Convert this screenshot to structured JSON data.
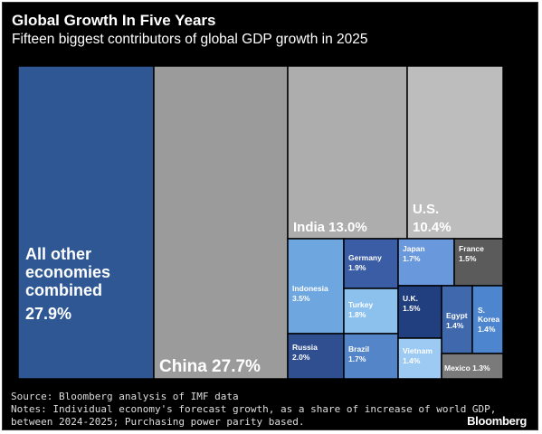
{
  "chart_data": {
    "type": "treemap",
    "title": "Global Growth In Five Years",
    "subtitle": "Fifteen biggest contributors of global GDP growth in 2025",
    "unit": "%",
    "items": [
      {
        "label": "All other economies combined",
        "value": 27.9,
        "display": "27.9%",
        "color": "#2e5794"
      },
      {
        "label": "China",
        "value": 27.7,
        "display": "27.7%",
        "color": "#9b9b9b"
      },
      {
        "label": "India",
        "value": 13.0,
        "display": "13.0%",
        "color": "#adadad"
      },
      {
        "label": "U.S.",
        "value": 10.4,
        "display": "10.4%",
        "color": "#bdbdbd"
      },
      {
        "label": "Indonesia",
        "value": 3.5,
        "display": "3.5%",
        "color": "#6ea6df"
      },
      {
        "label": "Germany",
        "value": 1.9,
        "display": "1.9%",
        "color": "#3a5da6"
      },
      {
        "label": "Turkey",
        "value": 1.8,
        "display": "1.8%",
        "color": "#8cc1ee"
      },
      {
        "label": "Russia",
        "value": 2.0,
        "display": "2.0%",
        "color": "#2f4f90"
      },
      {
        "label": "Brazil",
        "value": 1.7,
        "display": "1.7%",
        "color": "#5585c9"
      },
      {
        "label": "Japan",
        "value": 1.7,
        "display": "1.7%",
        "color": "#6a98dc"
      },
      {
        "label": "France",
        "value": 1.5,
        "display": "1.5%",
        "color": "#5b5b5b"
      },
      {
        "label": "U.K.",
        "value": 1.5,
        "display": "1.5%",
        "color": "#213f7f"
      },
      {
        "label": "Egypt",
        "value": 1.4,
        "display": "1.4%",
        "color": "#3f68ad"
      },
      {
        "label": "S. Korea",
        "value": 1.4,
        "display": "1.4%",
        "color": "#4d86cf"
      },
      {
        "label": "Vietnam",
        "value": 1.4,
        "display": "1.4%",
        "color": "#9ccaf3"
      },
      {
        "label": "Mexico",
        "value": 1.3,
        "display": "1.3%",
        "color": "#7a7a7a"
      }
    ]
  },
  "footer": {
    "source": "Source: Bloomberg analysis of IMF data",
    "notes_line1": "Notes: Individual economy's forecast growth, as a share of increase of world GDP,",
    "notes_line2": "between 2024-2025; Purchasing power parity based."
  },
  "brand": "Bloomberg"
}
